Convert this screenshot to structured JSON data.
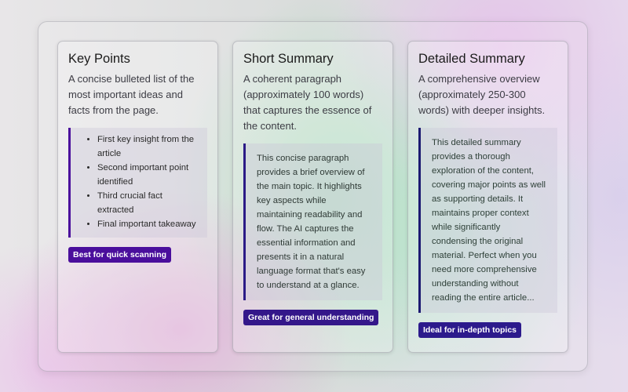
{
  "cards": [
    {
      "title": "Key Points",
      "description": "A concise bulleted list of the most important ideas and facts from the page.",
      "items": [
        "First key insight from the article",
        "Second important point identified",
        "Third crucial fact extracted",
        "Final important takeaway"
      ],
      "badge": "Best for quick scanning",
      "badge_color": "#4a0e9c"
    },
    {
      "title": "Short Summary",
      "description": "A coherent paragraph (approximately 100 words) that captures the essence of the content.",
      "example": "This concise paragraph provides a brief overview of the main topic. It highlights key aspects while maintaining readability and flow. The AI captures the essential information and presents it in a natural language format that's easy to understand at a glance.",
      "badge": "Great for general understanding",
      "badge_color": "#34178a"
    },
    {
      "title": "Detailed Summary",
      "description": "A comprehensive overview (approximately 250-300 words) with deeper insights.",
      "example": "This detailed summary provides a thorough exploration of the content, covering major points as well as supporting details. It maintains proper context while significantly condensing the original material. Perfect when you need more comprehensive understanding without reading the entire article...",
      "badge": "Ideal for in-depth topics",
      "badge_color": "#2c1a8c"
    }
  ]
}
